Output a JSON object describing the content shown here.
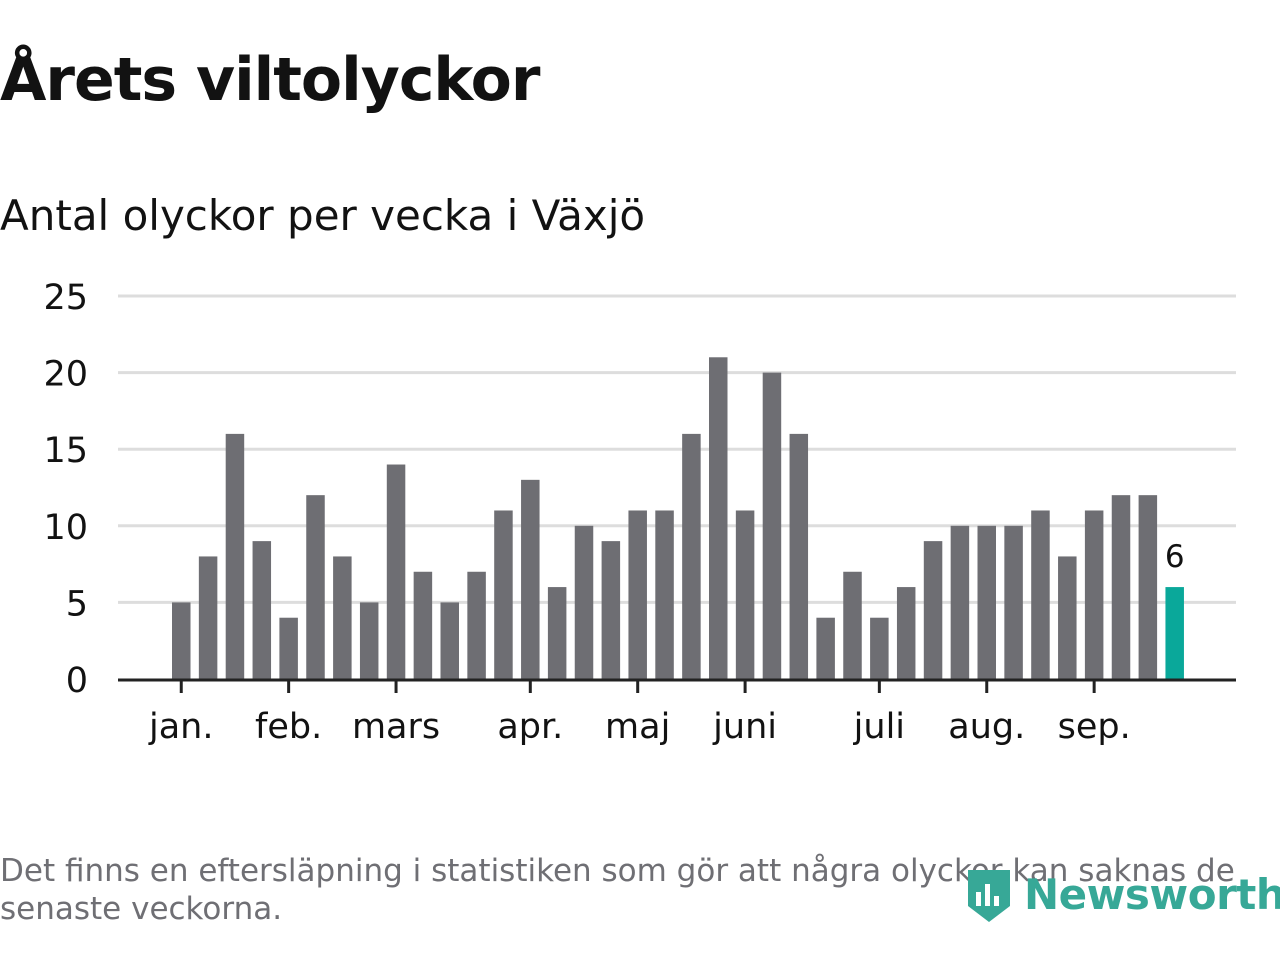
{
  "header": {
    "title": "Årets viltolyckor",
    "subtitle": "Antal olyckor per vecka i Växjö"
  },
  "footer": {
    "note": "Det finns en eftersläpning i statistiken som gör att några olyckor kan saknas de senaste veckorna.",
    "brand": "Newsworthy",
    "brand_icon": "newsworthy-logo-icon"
  },
  "colors": {
    "bar": "#6e6e73",
    "highlight": "#0aa89a",
    "grid": "#dddddd",
    "axis": "#222222",
    "text": "#121212",
    "muted": "#6f6f74",
    "brand": "#37a897"
  },
  "chart_data": {
    "type": "bar",
    "title": "",
    "xlabel": "",
    "ylabel": "",
    "ylim": [
      0,
      25
    ],
    "yticks": [
      0,
      5,
      10,
      15,
      20,
      25
    ],
    "grid": true,
    "values": [
      5,
      8,
      16,
      9,
      4,
      12,
      8,
      5,
      14,
      7,
      5,
      7,
      11,
      13,
      6,
      10,
      9,
      11,
      11,
      16,
      21,
      11,
      20,
      16,
      4,
      7,
      4,
      6,
      9,
      10,
      10,
      10,
      11,
      8,
      11,
      12,
      12,
      6
    ],
    "month_labels": [
      {
        "label": "jan.",
        "week": 1
      },
      {
        "label": "feb.",
        "week": 5
      },
      {
        "label": "mars",
        "week": 9
      },
      {
        "label": "apr.",
        "week": 14
      },
      {
        "label": "maj",
        "week": 18
      },
      {
        "label": "juni",
        "week": 22
      },
      {
        "label": "juli",
        "week": 27
      },
      {
        "label": "aug.",
        "week": 31
      },
      {
        "label": "sep.",
        "week": 35
      }
    ],
    "highlight_index": 37,
    "highlight_label": "6"
  }
}
